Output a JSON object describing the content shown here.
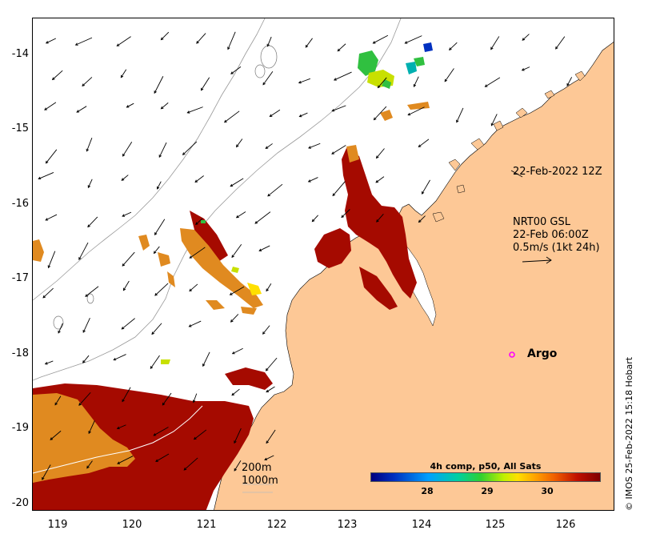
{
  "map": {
    "axis": {
      "y_ticks": [
        "-14",
        "-15",
        "-16",
        "-17",
        "-18",
        "-19",
        "-20"
      ],
      "x_ticks": [
        "119",
        "120",
        "121",
        "122",
        "123",
        "124",
        "125",
        "126"
      ]
    },
    "annotations": {
      "date_label": "22-Feb-2022 12Z",
      "current_block": [
        "NRT00 GSL",
        "22-Feb 06:00Z",
        "0.5m/s (1kt 24h)"
      ],
      "argo_label": "Argo",
      "isobath_200": "200m",
      "isobath_1000": "1000m"
    },
    "colorbar": {
      "title": "4h comp, p50, All Sats",
      "ticks": [
        "28",
        "29",
        "30"
      ]
    },
    "credit": "© IMOS 25-Feb-2022 15:18 Hobart",
    "colors": {
      "land": "#fdc896",
      "sst_hot": "#a50a00",
      "sst_warm": "#e08010",
      "argo_marker": "#ff00ff"
    }
  }
}
